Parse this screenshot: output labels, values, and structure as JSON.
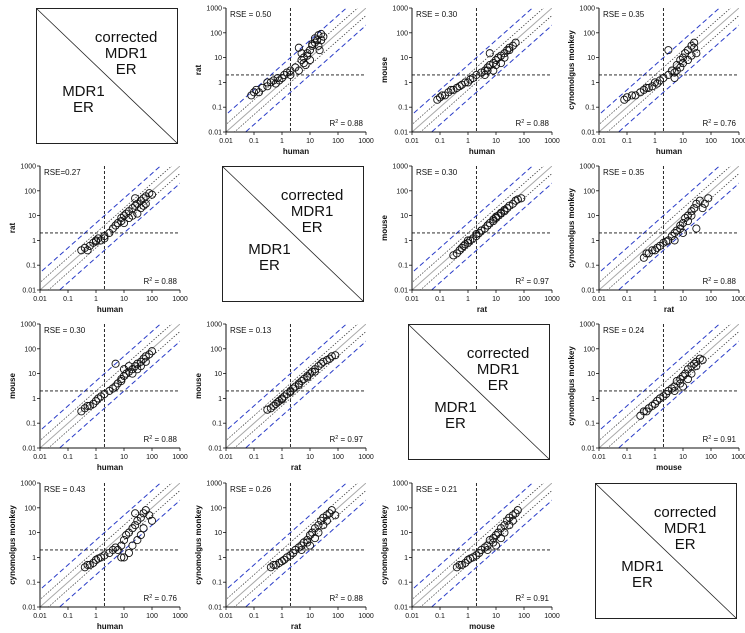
{
  "diag_box": {
    "upper_text": "corrected\nMDR1\nER",
    "lower_text": "MDR1\nER"
  },
  "style": {
    "identity_line": "#a8a8a8",
    "fold_lines": "#2a3cc8",
    "fold_dotted": "#333333",
    "points": "#111111"
  },
  "axis": {
    "scale": "log",
    "range": [
      0.01,
      1000
    ],
    "ticks": [
      "0.01",
      "0.1",
      "1",
      "10",
      "100",
      "1000"
    ],
    "cutoff": 2
  },
  "chart_data": [
    {
      "row": 0,
      "col": 0,
      "type": "diagonal-label"
    },
    {
      "row": 0,
      "col": 1,
      "type": "scatter",
      "xlabel": "human",
      "ylabel": "rat",
      "rse": "RSE = 0.50",
      "r2": "0.88",
      "x": [
        0.08,
        0.1,
        0.12,
        0.15,
        0.2,
        0.3,
        0.3,
        0.4,
        0.5,
        0.6,
        0.7,
        0.8,
        1,
        1.2,
        1.5,
        2,
        2,
        3,
        4,
        5,
        6,
        7,
        8,
        10,
        12,
        15,
        15,
        20,
        25,
        30,
        10,
        8,
        6,
        5,
        4,
        12,
        20,
        18,
        25,
        22
      ],
      "y": [
        0.3,
        0.4,
        0.5,
        0.4,
        0.6,
        0.7,
        1,
        1,
        1.2,
        0.9,
        1.5,
        1.2,
        1.5,
        2,
        2.5,
        2,
        3,
        4,
        3,
        8,
        10,
        5,
        15,
        20,
        30,
        40,
        60,
        80,
        50,
        70,
        8,
        12,
        6,
        15,
        25,
        35,
        30,
        50,
        90,
        20
      ]
    },
    {
      "row": 0,
      "col": 2,
      "type": "scatter",
      "xlabel": "human",
      "ylabel": "mouse",
      "rse": "RSE = 0.30",
      "r2": "0.88",
      "x": [
        0.08,
        0.1,
        0.12,
        0.15,
        0.2,
        0.25,
        0.3,
        0.4,
        0.5,
        0.6,
        0.8,
        1,
        1.2,
        1.5,
        2,
        3,
        4,
        5,
        6,
        8,
        10,
        12,
        15,
        20,
        25,
        30,
        40,
        50,
        10,
        8,
        15,
        20,
        30,
        6,
        5,
        4
      ],
      "y": [
        0.2,
        0.25,
        0.3,
        0.3,
        0.4,
        0.5,
        0.5,
        0.6,
        0.7,
        0.8,
        1,
        1,
        1.3,
        1.5,
        2,
        2.5,
        3,
        4,
        5,
        6,
        8,
        10,
        12,
        15,
        20,
        25,
        30,
        40,
        5,
        3,
        6,
        10,
        20,
        15,
        3,
        2
      ]
    },
    {
      "row": 0,
      "col": 3,
      "type": "scatter",
      "xlabel": "human",
      "ylabel": "cynomolgus monkey",
      "rse": "RSE = 0.35",
      "r2": "0.76",
      "x": [
        0.08,
        0.1,
        0.15,
        0.2,
        0.3,
        0.4,
        0.5,
        0.6,
        0.8,
        1,
        1.2,
        1.5,
        2,
        3,
        4,
        5,
        6,
        8,
        10,
        12,
        15,
        20,
        25,
        30,
        10,
        8,
        15,
        20,
        6,
        5,
        25,
        3
      ],
      "y": [
        0.2,
        0.25,
        0.3,
        0.3,
        0.4,
        0.5,
        0.6,
        0.6,
        0.7,
        1,
        0.9,
        1.2,
        1.5,
        2,
        3,
        2.5,
        5,
        8,
        10,
        15,
        20,
        30,
        40,
        15,
        6,
        4,
        8,
        12,
        3,
        1.5,
        25,
        20
      ]
    },
    {
      "row": 1,
      "col": 0,
      "type": "scatter",
      "xlabel": "human",
      "ylabel": "rat",
      "rse": "RSE=0.27",
      "r2": "0.88",
      "x": [
        0.3,
        0.4,
        0.5,
        0.6,
        0.8,
        1,
        1,
        1.2,
        1.5,
        2,
        2,
        3,
        4,
        5,
        6,
        8,
        10,
        12,
        15,
        20,
        25,
        30,
        40,
        50,
        60,
        80,
        100,
        10,
        8,
        15,
        20,
        30,
        40,
        50,
        60,
        25
      ],
      "y": [
        0.4,
        0.5,
        0.4,
        0.6,
        0.8,
        1,
        0.9,
        1.2,
        1,
        1.5,
        1.2,
        2,
        3,
        4,
        5,
        8,
        10,
        12,
        15,
        20,
        25,
        30,
        40,
        50,
        60,
        80,
        70,
        5,
        6,
        8,
        10,
        12,
        20,
        25,
        30,
        50
      ]
    },
    {
      "row": 1,
      "col": 1,
      "type": "diagonal-label"
    },
    {
      "row": 1,
      "col": 2,
      "type": "scatter",
      "xlabel": "rat",
      "ylabel": "mouse",
      "rse": "RSE = 0.30",
      "r2": "0.97",
      "x": [
        0.3,
        0.4,
        0.5,
        0.6,
        0.7,
        0.8,
        1,
        1.2,
        1.5,
        2,
        2.5,
        3,
        4,
        5,
        6,
        8,
        10,
        12,
        15,
        20,
        25,
        30,
        40,
        50,
        60,
        80,
        1,
        2,
        3,
        5,
        8,
        10,
        15,
        20
      ],
      "y": [
        0.25,
        0.3,
        0.4,
        0.5,
        0.6,
        0.7,
        0.8,
        1,
        1.2,
        1.5,
        2,
        2.5,
        3,
        4,
        5,
        6,
        8,
        10,
        12,
        15,
        20,
        25,
        30,
        40,
        45,
        50,
        1,
        1.8,
        2.5,
        4,
        7,
        9,
        13,
        17
      ]
    },
    {
      "row": 1,
      "col": 3,
      "type": "scatter",
      "xlabel": "rat",
      "ylabel": "cynomolgus monkey",
      "rse": "RSE = 0.35",
      "r2": "0.88",
      "x": [
        0.4,
        0.5,
        0.6,
        0.8,
        1,
        1.2,
        1.5,
        2,
        2.5,
        3,
        4,
        5,
        6,
        8,
        10,
        12,
        15,
        20,
        25,
        30,
        40,
        50,
        60,
        80,
        10,
        8,
        15,
        20,
        5,
        30
      ],
      "y": [
        0.2,
        0.3,
        0.3,
        0.4,
        0.4,
        0.5,
        0.6,
        0.8,
        0.9,
        1,
        1.5,
        2,
        2.5,
        4,
        5,
        8,
        10,
        15,
        20,
        30,
        40,
        20,
        30,
        50,
        2,
        3,
        6,
        10,
        1,
        3
      ]
    },
    {
      "row": 2,
      "col": 0,
      "type": "scatter",
      "xlabel": "human",
      "ylabel": "mouse",
      "rse": "RSE = 0.30",
      "r2": "0.88",
      "x": [
        0.3,
        0.4,
        0.5,
        0.6,
        0.8,
        1,
        1.2,
        1.5,
        2,
        3,
        4,
        5,
        6,
        8,
        10,
        12,
        15,
        20,
        25,
        30,
        40,
        50,
        60,
        80,
        100,
        5,
        8,
        10,
        15,
        20,
        30,
        40,
        60
      ],
      "y": [
        0.3,
        0.4,
        0.5,
        0.5,
        0.6,
        0.8,
        1,
        1.2,
        1.5,
        2,
        2.5,
        3,
        4,
        5,
        8,
        10,
        12,
        15,
        20,
        25,
        30,
        40,
        50,
        60,
        80,
        25,
        6,
        15,
        20,
        10,
        15,
        20,
        30
      ]
    },
    {
      "row": 2,
      "col": 1,
      "type": "scatter",
      "xlabel": "rat",
      "ylabel": "mouse",
      "rse": "RSE = 0.13",
      "r2": "0.97",
      "x": [
        0.3,
        0.4,
        0.5,
        0.6,
        0.7,
        0.8,
        1,
        1.2,
        1.5,
        2,
        2.5,
        3,
        4,
        5,
        6,
        8,
        10,
        12,
        15,
        20,
        25,
        30,
        40,
        50,
        60,
        80,
        1,
        2,
        4,
        8,
        15
      ],
      "y": [
        0.35,
        0.4,
        0.5,
        0.6,
        0.7,
        0.8,
        1,
        1.2,
        1.5,
        2,
        2.5,
        3,
        4,
        5,
        6,
        8,
        10,
        12,
        15,
        20,
        25,
        30,
        35,
        40,
        50,
        55,
        0.9,
        1.8,
        3.5,
        7,
        12
      ]
    },
    {
      "row": 2,
      "col": 2,
      "type": "diagonal-label"
    },
    {
      "row": 2,
      "col": 3,
      "type": "scatter",
      "xlabel": "mouse",
      "ylabel": "cynomolgus monkey",
      "rse": "RSE = 0.24",
      "r2": "0.91",
      "x": [
        0.3,
        0.4,
        0.5,
        0.6,
        0.8,
        1,
        1.2,
        1.5,
        2,
        2.5,
        3,
        4,
        5,
        6,
        8,
        10,
        12,
        15,
        20,
        25,
        30,
        40,
        50,
        10,
        8,
        15,
        20,
        5,
        30
      ],
      "y": [
        0.2,
        0.3,
        0.3,
        0.4,
        0.5,
        0.6,
        0.8,
        1,
        1.2,
        1.5,
        2,
        2.5,
        3,
        5,
        6,
        8,
        10,
        15,
        20,
        25,
        30,
        40,
        35,
        3,
        4,
        6,
        10,
        2,
        20
      ]
    },
    {
      "row": 3,
      "col": 0,
      "type": "scatter",
      "xlabel": "human",
      "ylabel": "cynomolgus monkey",
      "rse": "RSE = 0.43",
      "r2": "0.76",
      "x": [
        0.4,
        0.5,
        0.6,
        0.8,
        1,
        1.2,
        1.5,
        2,
        3,
        4,
        5,
        6,
        8,
        10,
        12,
        15,
        20,
        25,
        30,
        40,
        50,
        60,
        80,
        100,
        10,
        15,
        20,
        30,
        40,
        50,
        25,
        8
      ],
      "y": [
        0.4,
        0.5,
        0.5,
        0.6,
        0.8,
        0.9,
        1,
        1.2,
        1.5,
        2,
        2.5,
        2,
        3,
        5,
        8,
        10,
        15,
        20,
        30,
        40,
        60,
        80,
        50,
        30,
        1,
        1.5,
        3,
        5,
        8,
        15,
        60,
        1
      ]
    },
    {
      "row": 3,
      "col": 1,
      "type": "scatter",
      "xlabel": "rat",
      "ylabel": "cynomolgus monkey",
      "rse": "RSE = 0.26",
      "r2": "0.88",
      "x": [
        0.4,
        0.5,
        0.6,
        0.8,
        1,
        1.2,
        1.5,
        2,
        2.5,
        3,
        4,
        5,
        6,
        8,
        10,
        12,
        15,
        20,
        25,
        30,
        40,
        50,
        60,
        80,
        10,
        8,
        15,
        20,
        5,
        30,
        40
      ],
      "y": [
        0.4,
        0.5,
        0.5,
        0.6,
        0.7,
        0.8,
        1,
        1.2,
        1.5,
        2,
        2.5,
        3,
        4,
        5,
        8,
        10,
        15,
        20,
        30,
        40,
        50,
        60,
        80,
        50,
        3,
        4,
        6,
        10,
        2,
        20,
        30
      ]
    },
    {
      "row": 3,
      "col": 2,
      "type": "scatter",
      "xlabel": "mouse",
      "ylabel": "cynomolgus monkey",
      "rse": "RSE = 0.21",
      "r2": "0.91",
      "x": [
        0.4,
        0.5,
        0.6,
        0.8,
        1,
        1.2,
        1.5,
        2,
        2.5,
        3,
        4,
        5,
        6,
        8,
        10,
        12,
        15,
        20,
        25,
        30,
        40,
        50,
        60,
        10,
        8,
        15,
        20,
        5,
        30,
        40
      ],
      "y": [
        0.4,
        0.5,
        0.5,
        0.6,
        0.8,
        0.9,
        1,
        1.2,
        1.5,
        2,
        2.5,
        3,
        5,
        6,
        8,
        10,
        15,
        20,
        30,
        40,
        50,
        60,
        80,
        3,
        4,
        6,
        10,
        2,
        20,
        30
      ]
    },
    {
      "row": 3,
      "col": 3,
      "type": "diagonal-label"
    }
  ]
}
